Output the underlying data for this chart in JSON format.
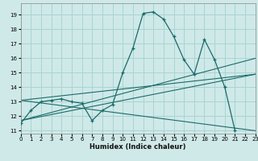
{
  "bg_color": "#cfe9e8",
  "grid_color": "#a8d4d2",
  "line_color": "#1a6b6a",
  "xlabel": "Humidex (Indice chaleur)",
  "xlim": [
    0,
    23
  ],
  "ylim": [
    10.8,
    19.8
  ],
  "xticks": [
    0,
    1,
    2,
    3,
    4,
    5,
    6,
    7,
    8,
    9,
    10,
    11,
    12,
    13,
    14,
    15,
    16,
    17,
    18,
    19,
    20,
    21,
    22,
    23
  ],
  "yticks": [
    11,
    12,
    13,
    14,
    15,
    16,
    17,
    18,
    19
  ],
  "curve1_x": [
    0,
    1,
    2,
    3,
    4,
    5,
    6,
    7,
    8,
    9,
    10,
    11,
    12,
    13,
    14,
    15,
    16,
    17
  ],
  "curve1_y": [
    11.5,
    12.4,
    13.0,
    13.1,
    13.2,
    13.0,
    12.9,
    11.7,
    12.4,
    12.8,
    15.0,
    16.7,
    19.1,
    19.2,
    18.7,
    17.5,
    15.9,
    14.9
  ],
  "curve2_x": [
    17,
    18,
    19,
    20,
    21
  ],
  "curve2_y": [
    14.9,
    17.3,
    15.9,
    14.0,
    11.0
  ],
  "trend1_x": [
    0,
    23
  ],
  "trend1_y": [
    11.7,
    16.0
  ],
  "trend2_x": [
    0,
    23
  ],
  "trend2_y": [
    11.7,
    14.9
  ],
  "trend3_x": [
    0,
    23
  ],
  "trend3_y": [
    13.1,
    14.9
  ],
  "trend4_x": [
    0,
    23
  ],
  "trend4_y": [
    13.1,
    11.0
  ]
}
